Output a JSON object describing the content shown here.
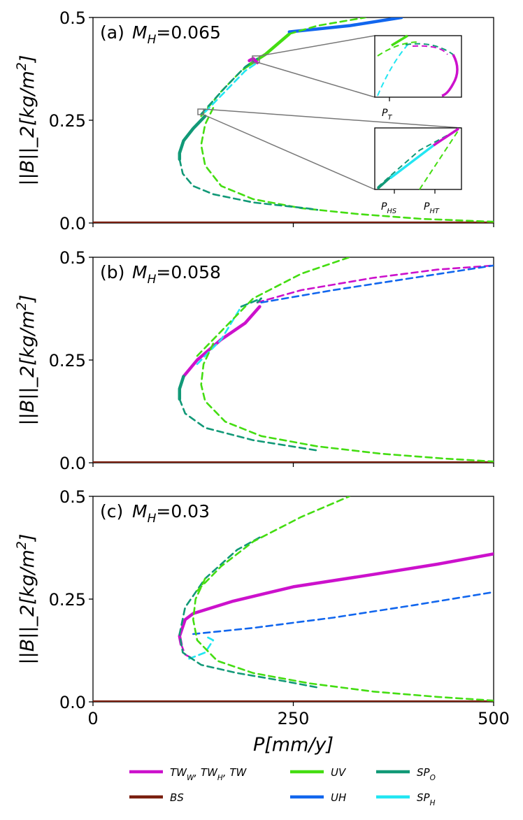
{
  "chart_data": [
    {
      "type": "line",
      "panel_label": "(a)",
      "param_label": "M_H=0.065",
      "param_symbol": "M",
      "param_sub": "H",
      "param_value": "=0.065",
      "xlim": [
        0,
        500
      ],
      "ylim": [
        0,
        0.5
      ],
      "xticks": [],
      "yticks": [
        "0.0",
        "0.25",
        "0.5"
      ],
      "ylabel": "||B||_2[kg/m^2]",
      "series": [
        {
          "name": "BS",
          "key": "BS",
          "style": "solid",
          "points": [
            [
              0,
              0.001
            ],
            [
              500,
              0.001
            ]
          ]
        },
        {
          "name": "UV",
          "key": "UV",
          "style": "solid",
          "points": [
            [
              195,
              0.385
            ],
            [
              215,
              0.41
            ],
            [
              245,
              0.46
            ]
          ]
        },
        {
          "name": "UH",
          "key": "UH",
          "style": "solid",
          "points": [
            [
              245,
              0.465
            ],
            [
              320,
              0.48
            ],
            [
              385,
              0.5
            ]
          ]
        },
        {
          "name": "UV",
          "key": "UV",
          "style": "dashed",
          "points": [
            [
              245,
              0.46
            ],
            [
              280,
              0.48
            ],
            [
              340,
              0.5
            ]
          ]
        },
        {
          "name": "UV",
          "key": "UV",
          "style": "dashed",
          "points": [
            [
              150,
              0.28
            ],
            [
              140,
              0.24
            ],
            [
              135,
              0.19
            ],
            [
              140,
              0.14
            ],
            [
              160,
              0.09
            ],
            [
              200,
              0.058
            ],
            [
              260,
              0.036
            ],
            [
              330,
              0.022
            ],
            [
              410,
              0.01
            ],
            [
              500,
              0.003
            ]
          ]
        },
        {
          "name": "UV",
          "key": "UV",
          "style": "dashed",
          "points": [
            [
              135,
              0.26
            ],
            [
              160,
              0.32
            ],
            [
              185,
              0.37
            ],
            [
              200,
              0.39
            ]
          ]
        },
        {
          "name": "SP_O",
          "key": "SPO",
          "style": "solid",
          "points": [
            [
              140,
              0.26
            ],
            [
              125,
              0.23
            ],
            [
              113,
              0.2
            ],
            [
              108,
              0.17
            ],
            [
              108,
              0.155
            ]
          ]
        },
        {
          "name": "SP_O",
          "key": "SPO",
          "style": "dashed",
          "points": [
            [
              108,
              0.155
            ],
            [
              112,
              0.12
            ],
            [
              125,
              0.09
            ],
            [
              150,
              0.07
            ],
            [
              200,
              0.05
            ],
            [
              270,
              0.035
            ],
            [
              280,
              0.032
            ]
          ]
        },
        {
          "name": "SP_O",
          "key": "SPO",
          "style": "dashed",
          "points": [
            [
              135,
              0.265
            ],
            [
              165,
              0.33
            ],
            [
              190,
              0.38
            ],
            [
              205,
              0.4
            ]
          ]
        },
        {
          "name": "SP_H",
          "key": "SPH",
          "style": "dashed",
          "points": [
            [
              140,
              0.27
            ],
            [
              165,
              0.32
            ],
            [
              190,
              0.37
            ],
            [
              205,
              0.39
            ]
          ]
        },
        {
          "name": "TW",
          "key": "TW",
          "style": "solid",
          "points": [
            [
              205,
              0.39
            ],
            [
              200,
              0.4
            ],
            [
              195,
              0.395
            ]
          ]
        }
      ],
      "insets": [
        {
          "labels": [
            "P_T"
          ]
        },
        {
          "labels": [
            "P_HS",
            "P_HT"
          ]
        }
      ]
    },
    {
      "type": "line",
      "panel_label": "(b)",
      "param_label": "M_H=0.058",
      "param_symbol": "M",
      "param_sub": "H",
      "param_value": "=0.058",
      "xlim": [
        0,
        500
      ],
      "ylim": [
        0,
        0.5
      ],
      "xticks": [],
      "yticks": [
        "0.0",
        "0.25",
        "0.5"
      ],
      "ylabel": "||B||_2[kg/m^2]",
      "series": [
        {
          "name": "BS",
          "key": "BS",
          "style": "solid",
          "points": [
            [
              0,
              0.001
            ],
            [
              500,
              0.001
            ]
          ]
        },
        {
          "name": "TW",
          "key": "TW",
          "style": "solid",
          "points": [
            [
              113,
              0.21
            ],
            [
              130,
              0.25
            ],
            [
              160,
              0.3
            ],
            [
              190,
              0.34
            ],
            [
              208,
              0.38
            ]
          ]
        },
        {
          "name": "TW",
          "key": "TW",
          "style": "dashed",
          "points": [
            [
              205,
              0.39
            ],
            [
              260,
              0.42
            ],
            [
              350,
              0.45
            ],
            [
              430,
              0.47
            ],
            [
              500,
              0.48
            ]
          ]
        },
        {
          "name": "UH",
          "key": "UH",
          "style": "dashed",
          "points": [
            [
              210,
              0.39
            ],
            [
              300,
              0.42
            ],
            [
              400,
              0.45
            ],
            [
              500,
              0.48
            ]
          ]
        },
        {
          "name": "SP_H",
          "key": "SPH",
          "style": "dashed",
          "points": [
            [
              130,
              0.24
            ],
            [
              145,
              0.27
            ],
            [
              160,
              0.3
            ],
            [
              185,
              0.38
            ],
            [
              210,
              0.4
            ]
          ]
        },
        {
          "name": "SP_O",
          "key": "SPO",
          "style": "solid",
          "points": [
            [
              113,
              0.21
            ],
            [
              108,
              0.18
            ],
            [
              108,
              0.155
            ]
          ]
        },
        {
          "name": "SP_O",
          "key": "SPO",
          "style": "dashed",
          "points": [
            [
              108,
              0.155
            ],
            [
              115,
              0.12
            ],
            [
              140,
              0.085
            ],
            [
              200,
              0.055
            ],
            [
              280,
              0.03
            ]
          ]
        },
        {
          "name": "SP_O",
          "key": "SPO",
          "style": "dashed",
          "points": [
            [
              185,
              0.38
            ],
            [
              210,
              0.4
            ],
            [
              205,
              0.39
            ]
          ]
        },
        {
          "name": "UV",
          "key": "UV",
          "style": "dashed",
          "points": [
            [
              130,
              0.26
            ],
            [
              160,
              0.32
            ],
            [
              200,
              0.4
            ],
            [
              260,
              0.46
            ],
            [
              320,
              0.5
            ]
          ]
        },
        {
          "name": "UV",
          "key": "UV",
          "style": "dashed",
          "points": [
            [
              150,
              0.29
            ],
            [
              138,
              0.24
            ],
            [
              135,
              0.19
            ],
            [
              140,
              0.15
            ],
            [
              165,
              0.1
            ],
            [
              210,
              0.065
            ],
            [
              280,
              0.04
            ],
            [
              360,
              0.022
            ],
            [
              440,
              0.01
            ],
            [
              500,
              0.003
            ]
          ]
        }
      ]
    },
    {
      "type": "line",
      "panel_label": "(c)",
      "param_label": "M_H=0.03",
      "param_symbol": "M",
      "param_sub": "H",
      "param_value": "=0.03",
      "xlim": [
        0,
        500
      ],
      "ylim": [
        0,
        0.5
      ],
      "xticks": [
        "0",
        "250",
        "500"
      ],
      "yticks": [
        "0.0",
        "0.25",
        "0.5"
      ],
      "xlabel": "P[mm/y]",
      "ylabel": "||B||_2[kg/m^2]",
      "series": [
        {
          "name": "BS",
          "key": "BS",
          "style": "solid",
          "points": [
            [
              0,
              0.001
            ],
            [
              500,
              0.001
            ]
          ]
        },
        {
          "name": "TW",
          "key": "TW",
          "style": "solid",
          "points": [
            [
              110,
              0.14
            ],
            [
              108,
              0.16
            ],
            [
              115,
              0.2
            ],
            [
              125,
              0.215
            ],
            [
              175,
              0.245
            ],
            [
              250,
              0.28
            ],
            [
              350,
              0.31
            ],
            [
              430,
              0.335
            ],
            [
              500,
              0.36
            ]
          ]
        },
        {
          "name": "TW",
          "key": "TW",
          "style": "dashed",
          "points": [
            [
              110,
              0.14
            ],
            [
              115,
              0.115
            ],
            [
              125,
              0.105
            ]
          ]
        },
        {
          "name": "UH",
          "key": "UH",
          "style": "dashed",
          "points": [
            [
              125,
              0.165
            ],
            [
              200,
              0.18
            ],
            [
              300,
              0.205
            ],
            [
              400,
              0.235
            ],
            [
              500,
              0.267
            ]
          ]
        },
        {
          "name": "SP_H",
          "key": "SPH",
          "style": "dashed",
          "points": [
            [
              120,
              0.105
            ],
            [
              140,
              0.12
            ],
            [
              150,
              0.15
            ],
            [
              140,
              0.16
            ]
          ]
        },
        {
          "name": "SP_O",
          "key": "SPO",
          "style": "dashed",
          "points": [
            [
              208,
              0.4
            ],
            [
              180,
              0.37
            ],
            [
              140,
              0.3
            ],
            [
              115,
              0.23
            ],
            [
              108,
              0.165
            ],
            [
              112,
              0.12
            ],
            [
              135,
              0.09
            ],
            [
              180,
              0.07
            ],
            [
              240,
              0.05
            ],
            [
              280,
              0.035
            ]
          ]
        },
        {
          "name": "UV",
          "key": "UV",
          "style": "dashed",
          "points": [
            [
              130,
              0.27
            ],
            [
              160,
              0.33
            ],
            [
              200,
              0.39
            ],
            [
              260,
              0.45
            ],
            [
              320,
              0.5
            ]
          ]
        },
        {
          "name": "UV",
          "key": "UV",
          "style": "dashed",
          "points": [
            [
              140,
              0.3
            ],
            [
              128,
              0.25
            ],
            [
              125,
              0.2
            ],
            [
              130,
              0.15
            ],
            [
              155,
              0.1
            ],
            [
              200,
              0.07
            ],
            [
              270,
              0.045
            ],
            [
              350,
              0.025
            ],
            [
              430,
              0.012
            ],
            [
              500,
              0.003
            ]
          ]
        }
      ]
    }
  ],
  "legend": [
    {
      "key": "TW",
      "label": "TW_W, TW_H, TW"
    },
    {
      "key": "UV",
      "label": "UV"
    },
    {
      "key": "SPO",
      "label": "SP_O"
    },
    {
      "key": "BS",
      "label": "BS"
    },
    {
      "key": "UH",
      "label": "UH"
    },
    {
      "key": "SPH",
      "label": "SP_H"
    }
  ],
  "colors": {
    "TW": "#cc11cc",
    "BS": "#7a1f0f",
    "UV": "#44dd11",
    "UH": "#1166ee",
    "SPO": "#119977",
    "SPH": "#22e6f2"
  },
  "inset_labels": {
    "PT": "P_T",
    "PHS": "P_HS",
    "PHT": "P_HT"
  }
}
